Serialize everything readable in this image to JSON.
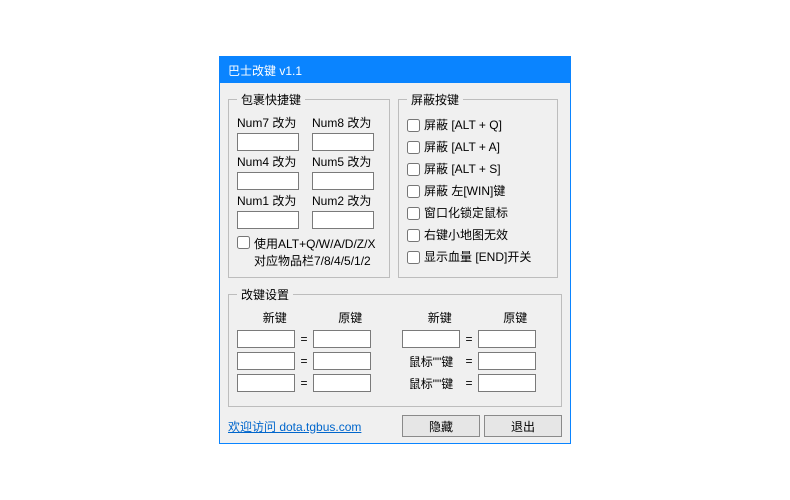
{
  "window": {
    "title": "巴士改键 v1.1"
  },
  "pack": {
    "legend": "包裹快捷键",
    "cells": [
      {
        "label": "Num7 改为",
        "value": ""
      },
      {
        "label": "Num8 改为",
        "value": ""
      },
      {
        "label": "Num4 改为",
        "value": ""
      },
      {
        "label": "Num5 改为",
        "value": ""
      },
      {
        "label": "Num1 改为",
        "value": ""
      },
      {
        "label": "Num2 改为",
        "value": ""
      }
    ],
    "alt": {
      "checked": false,
      "line1": "使用ALT+Q/W/A/D/Z/X",
      "line2": "对应物品栏7/8/4/5/1/2"
    }
  },
  "block": {
    "legend": "屏蔽按键",
    "items": [
      {
        "label": "屏蔽 [ALT + Q]",
        "checked": false
      },
      {
        "label": "屏蔽 [ALT + A]",
        "checked": false
      },
      {
        "label": "屏蔽 [ALT + S]",
        "checked": false
      },
      {
        "label": "屏蔽 左[WIN]键",
        "checked": false
      },
      {
        "label": "窗口化锁定鼠标",
        "checked": false
      },
      {
        "label": "右键小地图无效",
        "checked": false
      },
      {
        "label": "显示血量 [END]开关",
        "checked": false
      }
    ]
  },
  "remap": {
    "legend": "改键设置",
    "head_new": "新键",
    "head_orig": "原键",
    "eq": "=",
    "left": [
      {
        "new": "",
        "orig": ""
      },
      {
        "new": "",
        "orig": ""
      },
      {
        "new": "",
        "orig": ""
      }
    ],
    "right": {
      "row0": {
        "new": "",
        "orig": ""
      },
      "mouse_rows": [
        {
          "label": "鼠标\"\"键",
          "orig": ""
        },
        {
          "label": "鼠标\"\"键",
          "orig": ""
        }
      ]
    }
  },
  "footer": {
    "link_text": "欢迎访问 dota.tgbus.com",
    "btn_hide": "隐藏",
    "btn_exit": "退出"
  },
  "colors": {
    "titlebar_bg": "#0a84ff",
    "window_bg": "#f0f0f0",
    "border": "#bdbdbd",
    "link": "#0066cc"
  }
}
